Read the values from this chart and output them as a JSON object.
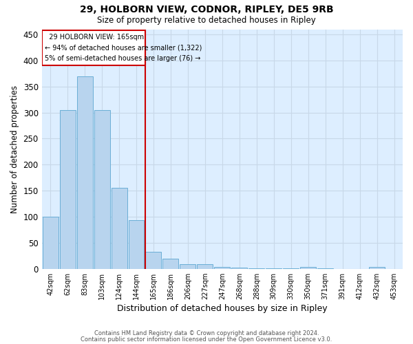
{
  "title1": "29, HOLBORN VIEW, CODNOR, RIPLEY, DE5 9RB",
  "title2": "Size of property relative to detached houses in Ripley",
  "xlabel": "Distribution of detached houses by size in Ripley",
  "ylabel": "Number of detached properties",
  "footer1": "Contains HM Land Registry data © Crown copyright and database right 2024.",
  "footer2": "Contains public sector information licensed under the Open Government Licence v3.0.",
  "annotation_line1": "29 HOLBORN VIEW: 165sqm",
  "annotation_line2": "← 94% of detached houses are smaller (1,322)",
  "annotation_line3": "5% of semi-detached houses are larger (76) →",
  "bar_labels": [
    "42sqm",
    "62sqm",
    "83sqm",
    "103sqm",
    "124sqm",
    "144sqm",
    "165sqm",
    "186sqm",
    "206sqm",
    "227sqm",
    "247sqm",
    "268sqm",
    "288sqm",
    "309sqm",
    "330sqm",
    "350sqm",
    "371sqm",
    "391sqm",
    "412sqm",
    "432sqm",
    "453sqm"
  ],
  "bar_values": [
    100,
    305,
    370,
    305,
    155,
    93,
    33,
    20,
    9,
    9,
    4,
    2,
    1,
    1,
    1,
    3,
    1,
    0,
    0,
    3,
    0
  ],
  "bar_color": "#b8d4ee",
  "bar_edge_color": "#6aaed6",
  "vline_color": "#cc0000",
  "vline_x_index": 6,
  "ylim": [
    0,
    460
  ],
  "yticks": [
    0,
    50,
    100,
    150,
    200,
    250,
    300,
    350,
    400,
    450
  ],
  "annotation_box_color": "#cc0000",
  "grid_color": "#c8d8e8",
  "bg_color": "#ddeeff"
}
